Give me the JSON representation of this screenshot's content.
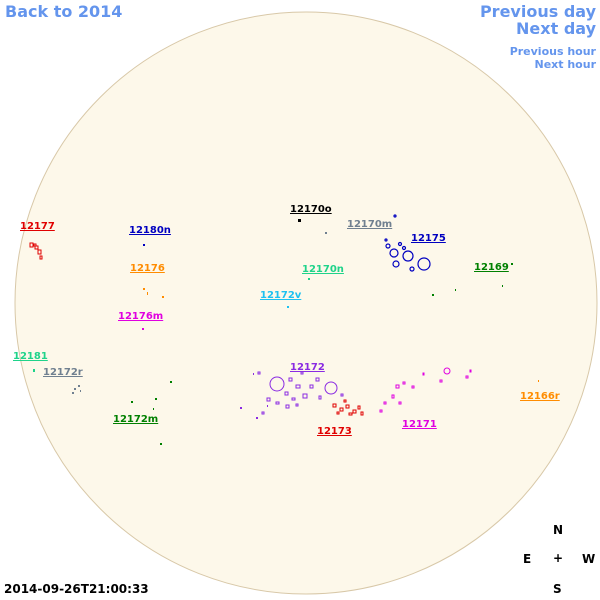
{
  "nav": {
    "back": "Back to 2014",
    "previous_day": "Previous day",
    "next_day": "Next day",
    "previous_hour": "Previous hour",
    "next_hour": "Next hour"
  },
  "timestamp": "2014-09-26T21:00:33",
  "compass": {
    "north": "N",
    "south": "S",
    "east": "E",
    "west": "W",
    "center": "+"
  },
  "colors": {
    "disk_fill": "#fdf8ea",
    "disk_stroke": "#d8c8a8"
  },
  "regions": [
    {
      "id": "12177",
      "color": "#e00000"
    },
    {
      "id": "12180n",
      "color": "#0000c0"
    },
    {
      "id": "12170o",
      "color": "#000000"
    },
    {
      "id": "12170m",
      "color": "#708090"
    },
    {
      "id": "12175",
      "color": "#0000c0"
    },
    {
      "id": "12176",
      "color": "#ff8c00"
    },
    {
      "id": "12170n",
      "color": "#1fd38a"
    },
    {
      "id": "12169",
      "color": "#008000"
    },
    {
      "id": "12172v",
      "color": "#1ec1f0"
    },
    {
      "id": "12176m",
      "color": "#e000e0"
    },
    {
      "id": "12181",
      "color": "#1fd38a"
    },
    {
      "id": "12172r",
      "color": "#708090"
    },
    {
      "id": "12172",
      "color": "#8a2be2"
    },
    {
      "id": "12166r",
      "color": "#ff8c00"
    },
    {
      "id": "12172m",
      "color": "#008000"
    },
    {
      "id": "12173",
      "color": "#e00000"
    },
    {
      "id": "12171",
      "color": "#e000e0"
    }
  ]
}
